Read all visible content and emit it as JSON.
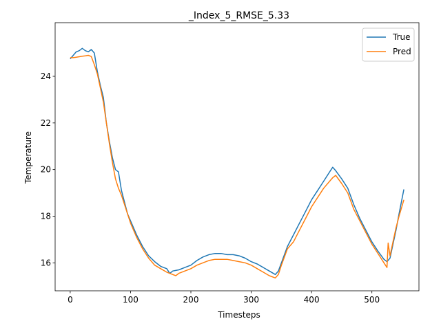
{
  "chart_data": {
    "type": "line",
    "title": "_Index_5_RMSE_5.33",
    "xlabel": "Timesteps",
    "ylabel": "Temperature",
    "xlim": [
      -25,
      578
    ],
    "ylim": [
      14.8,
      26.3
    ],
    "xticks": [
      0,
      100,
      200,
      300,
      400,
      500
    ],
    "yticks": [
      16,
      18,
      20,
      22,
      24
    ],
    "grid": false,
    "legend_position": "top-right",
    "series": [
      {
        "name": "True",
        "color": "#1f77b4",
        "x": [
          0,
          5,
          10,
          15,
          20,
          25,
          30,
          35,
          40,
          45,
          50,
          55,
          60,
          65,
          70,
          75,
          80,
          85,
          90,
          95,
          100,
          110,
          120,
          130,
          140,
          150,
          160,
          165,
          170,
          180,
          190,
          200,
          210,
          220,
          230,
          240,
          250,
          260,
          270,
          280,
          290,
          300,
          310,
          320,
          330,
          340,
          345,
          350,
          360,
          370,
          380,
          390,
          400,
          410,
          420,
          430,
          435,
          440,
          450,
          460,
          470,
          480,
          490,
          500,
          510,
          520,
          525,
          530,
          535,
          540,
          545,
          553
        ],
        "y": [
          24.75,
          24.9,
          25.05,
          25.1,
          25.2,
          25.1,
          25.05,
          25.15,
          25.0,
          24.2,
          23.6,
          23.1,
          22.0,
          21.2,
          20.5,
          20.0,
          19.9,
          19.1,
          18.6,
          18.1,
          17.8,
          17.2,
          16.7,
          16.3,
          16.05,
          15.85,
          15.75,
          15.55,
          15.65,
          15.7,
          15.8,
          15.9,
          16.1,
          16.25,
          16.35,
          16.4,
          16.4,
          16.35,
          16.35,
          16.3,
          16.2,
          16.05,
          15.95,
          15.8,
          15.65,
          15.5,
          15.65,
          16.0,
          16.7,
          17.2,
          17.7,
          18.2,
          18.7,
          19.1,
          19.5,
          19.9,
          20.1,
          19.95,
          19.6,
          19.2,
          18.5,
          17.9,
          17.4,
          16.9,
          16.5,
          16.15,
          16.05,
          16.2,
          16.8,
          17.4,
          18.1,
          19.15
        ]
      },
      {
        "name": "Pred",
        "color": "#ff7f0e",
        "x": [
          0,
          5,
          10,
          15,
          20,
          25,
          30,
          35,
          40,
          45,
          50,
          55,
          60,
          65,
          70,
          75,
          80,
          85,
          90,
          95,
          100,
          110,
          120,
          130,
          140,
          150,
          160,
          170,
          175,
          180,
          190,
          200,
          210,
          220,
          230,
          240,
          250,
          260,
          270,
          280,
          290,
          300,
          310,
          320,
          330,
          340,
          345,
          350,
          360,
          370,
          380,
          390,
          400,
          410,
          420,
          430,
          435,
          440,
          450,
          460,
          470,
          480,
          490,
          500,
          510,
          520,
          525,
          527,
          530,
          535,
          540,
          545,
          553
        ],
        "y": [
          24.8,
          24.8,
          24.82,
          24.84,
          24.86,
          24.88,
          24.9,
          24.85,
          24.5,
          24.1,
          23.5,
          22.9,
          22.0,
          21.1,
          20.3,
          19.6,
          19.2,
          18.9,
          18.5,
          18.1,
          17.7,
          17.1,
          16.6,
          16.2,
          15.9,
          15.75,
          15.6,
          15.5,
          15.45,
          15.55,
          15.65,
          15.75,
          15.9,
          16.0,
          16.1,
          16.15,
          16.15,
          16.15,
          16.1,
          16.05,
          16.0,
          15.9,
          15.75,
          15.6,
          15.45,
          15.35,
          15.5,
          15.9,
          16.6,
          16.9,
          17.4,
          17.9,
          18.4,
          18.8,
          19.2,
          19.5,
          19.65,
          19.75,
          19.4,
          19.0,
          18.3,
          17.8,
          17.3,
          16.8,
          16.4,
          16.0,
          15.8,
          16.85,
          16.3,
          16.9,
          17.5,
          18.0,
          18.7
        ]
      }
    ]
  }
}
